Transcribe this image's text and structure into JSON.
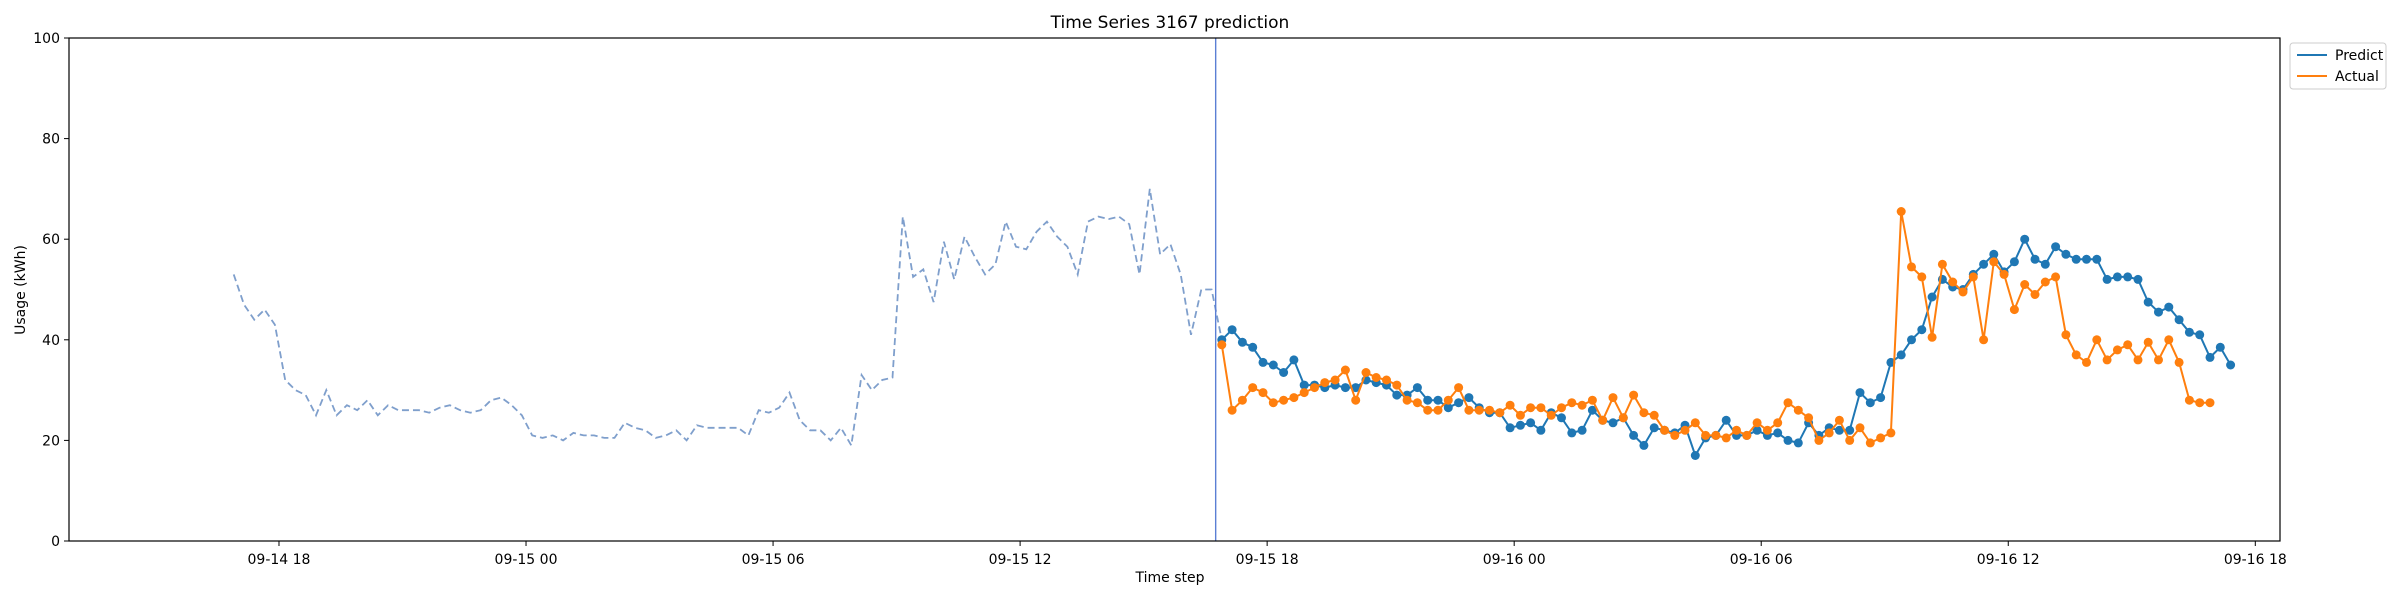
{
  "chart_data": {
    "type": "line",
    "title": "Time Series 3167 prediction",
    "xlabel": "Time step",
    "ylabel": "Usage (kWh)",
    "ylim": [
      0,
      100
    ],
    "yticks": [
      0,
      20,
      40,
      60,
      80,
      100
    ],
    "xlim_hours": [
      -5.1,
      48.6
    ],
    "xticks": [
      {
        "hour": 0,
        "label": "09-14 18"
      },
      {
        "hour": 6,
        "label": "09-15 00"
      },
      {
        "hour": 12,
        "label": "09-15 06"
      },
      {
        "hour": 18,
        "label": "09-15 12"
      },
      {
        "hour": 24,
        "label": "09-15 18"
      },
      {
        "hour": 30,
        "label": "09-16 00"
      },
      {
        "hour": 36,
        "label": "09-16 06"
      },
      {
        "hour": 42,
        "label": "09-16 12"
      },
      {
        "hour": 48,
        "label": "09-16 18"
      }
    ],
    "x_start_hour": -1.1,
    "x_step_hours": 0.25,
    "forecast_split_hour": 22.75,
    "history": {
      "color": "#7f9fcc",
      "values": [
        53,
        47,
        44,
        46,
        43,
        32,
        30,
        29,
        25,
        30,
        25,
        27,
        26,
        28,
        25,
        27,
        26,
        26,
        26,
        25.5,
        26.5,
        27,
        26,
        25.5,
        26,
        28,
        28.5,
        27,
        25,
        21,
        20.5,
        21,
        20,
        21.5,
        21,
        21,
        20.5,
        20.5,
        23.5,
        22.5,
        22,
        20.5,
        21,
        22,
        20,
        23,
        22.5,
        22.5,
        22.5,
        22.5,
        21,
        26,
        25.5,
        26.5,
        29.5,
        24,
        22,
        22,
        20,
        22.5,
        19,
        33,
        30,
        32,
        32.5,
        64.5,
        52.5,
        54,
        47.5,
        59.5,
        52,
        60.5,
        56.5,
        53,
        55,
        63.5,
        58.5,
        58,
        61.5,
        63.5,
        60.5,
        58.5,
        53,
        63.5,
        64.5,
        64,
        64.5,
        63,
        53,
        70,
        57,
        59,
        53,
        41,
        50,
        50,
        40
      ]
    },
    "series": [
      {
        "name": "Predict",
        "color": "#1f77b4",
        "values": [
          40,
          42,
          39.5,
          38.5,
          35.5,
          35,
          33.5,
          36,
          31,
          31,
          30.5,
          31,
          30.5,
          30.5,
          32,
          31.5,
          31,
          29,
          29,
          30.5,
          28,
          28,
          26.5,
          27.5,
          28.5,
          26.5,
          25.5,
          25.5,
          22.5,
          23,
          23.5,
          22,
          25.5,
          24.5,
          21.5,
          22,
          26,
          24,
          23.5,
          24.5,
          21,
          19,
          22.5,
          22,
          21.5,
          23,
          17,
          20.5,
          21,
          24,
          21,
          21,
          22,
          21,
          21.5,
          20,
          19.5,
          23.5,
          21,
          22.5,
          22,
          22,
          29.5,
          27.5,
          28.5,
          35.5,
          37,
          40,
          42,
          48.5,
          52,
          50.5,
          50,
          53,
          55,
          57,
          53.5,
          55.5,
          60,
          56,
          55,
          58.5,
          57,
          56,
          56,
          56,
          52,
          52.5,
          52.5,
          52,
          47.5,
          45.5,
          46.5,
          44,
          41.5,
          41,
          36.5,
          38.5,
          35
        ]
      },
      {
        "name": "Actual",
        "color": "#ff7f0e",
        "values": [
          39,
          26,
          28,
          30.5,
          29.5,
          27.5,
          28,
          28.5,
          29.5,
          30.5,
          31.5,
          32,
          34,
          28,
          33.5,
          32.5,
          32,
          31,
          28,
          27.5,
          26,
          26,
          28,
          30.5,
          26,
          26,
          26,
          25.5,
          27,
          25,
          26.5,
          26.5,
          25,
          26.5,
          27.5,
          27,
          28,
          24,
          28.5,
          24.5,
          29,
          25.5,
          25,
          22,
          21,
          22,
          23.5,
          21,
          21,
          20.5,
          22,
          21,
          23.5,
          22,
          23.5,
          27.5,
          26,
          24.5,
          20,
          21.5,
          24,
          20,
          22.5,
          19.5,
          20.5,
          21.5,
          65.5,
          54.5,
          52.5,
          40.5,
          55,
          51.5,
          49.5,
          52.5,
          40,
          55.5,
          53,
          46,
          51,
          49,
          51.5,
          52.5,
          41,
          37,
          35.5,
          40,
          36,
          38,
          39,
          36,
          39.5,
          36,
          40,
          35.5,
          28,
          27.5,
          27.5
        ]
      }
    ],
    "legend": {
      "location": "top-right",
      "entries": [
        "Predict",
        "Actual"
      ]
    }
  }
}
